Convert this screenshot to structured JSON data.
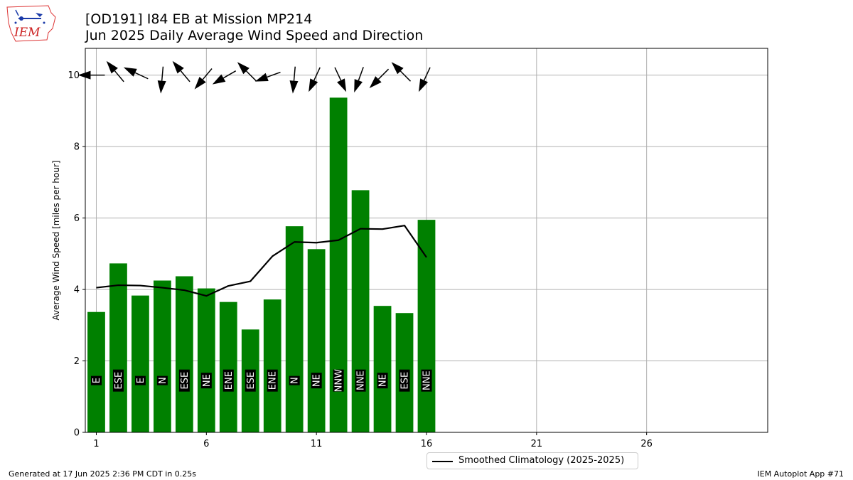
{
  "title_line1": "[OD191] I84 EB at Mission MP214",
  "title_line2": "Jun 2025 Daily Average Wind Speed and Direction",
  "logo_text": "IEM",
  "footer_left": "Generated at 17 Jun 2025 2:36 PM CDT in 0.25s",
  "footer_right": "IEM Autoplot App #71",
  "colors": {
    "bar": "#008000",
    "line": "#000000",
    "grid": "#b0b0b0",
    "label_bg": "#000000",
    "label_text": "#ffffff"
  },
  "chart_data": {
    "type": "bar",
    "ylabel": "Average Wind Speed [miles per hour]",
    "xlabel": "",
    "ylim": [
      0,
      10.75
    ],
    "xlim": [
      0.5,
      31.5
    ],
    "x_ticks": [
      1,
      6,
      11,
      16,
      21,
      26
    ],
    "y_ticks": [
      0,
      2,
      4,
      6,
      8,
      10
    ],
    "grid": true,
    "days": [
      1,
      2,
      3,
      4,
      5,
      6,
      7,
      8,
      9,
      10,
      11,
      12,
      13,
      14,
      15,
      16
    ],
    "values": [
      3.37,
      4.73,
      3.83,
      4.25,
      4.37,
      4.03,
      3.65,
      2.88,
      3.72,
      5.77,
      5.13,
      9.37,
      6.78,
      3.54,
      3.34,
      5.95
    ],
    "directions": [
      "E",
      "ESE",
      "E",
      "N",
      "ESE",
      "NE",
      "ENE",
      "ESE",
      "ENE",
      "N",
      "NE",
      "NNW",
      "NNE",
      "NE",
      "ESE",
      "NNE"
    ],
    "arrow_angles_deg": [
      180,
      230,
      205,
      95,
      230,
      130,
      150,
      225,
      160,
      95,
      115,
      65,
      110,
      135,
      225,
      115
    ],
    "climatology": {
      "name": "Smoothed Climatology (2025-2025)",
      "days": [
        1,
        2,
        3,
        4,
        5,
        6,
        7,
        8,
        9,
        10,
        11,
        12,
        13,
        14,
        15,
        16
      ],
      "values": [
        4.05,
        4.12,
        4.11,
        4.05,
        3.98,
        3.82,
        4.1,
        4.23,
        4.93,
        5.33,
        5.31,
        5.38,
        5.7,
        5.69,
        5.79,
        4.9
      ]
    },
    "legend": "bottom-center"
  }
}
